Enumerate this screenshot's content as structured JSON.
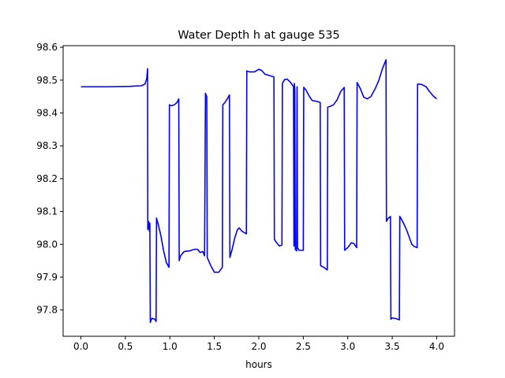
{
  "chart_data": {
    "type": "line",
    "title": "Water Depth h at gauge 535",
    "xlabel": "hours",
    "ylabel": "",
    "xlim": [
      -0.2,
      4.2
    ],
    "ylim": [
      97.72,
      98.605
    ],
    "xticks": [
      0.0,
      0.5,
      1.0,
      1.5,
      2.0,
      2.5,
      3.0,
      3.5,
      4.0
    ],
    "xtick_labels": [
      "0.0",
      "0.5",
      "1.0",
      "1.5",
      "2.0",
      "2.5",
      "3.0",
      "3.5",
      "4.0"
    ],
    "yticks": [
      97.8,
      97.9,
      98.0,
      98.1,
      98.2,
      98.3,
      98.4,
      98.5,
      98.6
    ],
    "ytick_labels": [
      "97.8",
      "97.9",
      "98.0",
      "98.1",
      "98.2",
      "98.3",
      "98.4",
      "98.5",
      "98.6"
    ],
    "grid": false,
    "legend": "none",
    "series": [
      {
        "color": "#0000ff",
        "points": [
          [
            0.0,
            98.48
          ],
          [
            0.3,
            98.48
          ],
          [
            0.55,
            98.481
          ],
          [
            0.68,
            98.483
          ],
          [
            0.72,
            98.488
          ],
          [
            0.74,
            98.505
          ],
          [
            0.75,
            98.535
          ],
          [
            0.752,
            98.045
          ],
          [
            0.76,
            98.07
          ],
          [
            0.77,
            98.04
          ],
          [
            0.775,
            98.065
          ],
          [
            0.78,
            97.762
          ],
          [
            0.79,
            97.77
          ],
          [
            0.8,
            97.775
          ],
          [
            0.83,
            97.772
          ],
          [
            0.845,
            97.765
          ],
          [
            0.85,
            98.08
          ],
          [
            0.87,
            98.06
          ],
          [
            0.9,
            98.025
          ],
          [
            0.93,
            97.98
          ],
          [
            0.96,
            97.945
          ],
          [
            0.99,
            97.93
          ],
          [
            0.995,
            98.425
          ],
          [
            1.02,
            98.422
          ],
          [
            1.05,
            98.425
          ],
          [
            1.08,
            98.432
          ],
          [
            1.1,
            98.443
          ],
          [
            1.105,
            97.95
          ],
          [
            1.12,
            97.965
          ],
          [
            1.16,
            97.978
          ],
          [
            1.22,
            97.98
          ],
          [
            1.28,
            97.985
          ],
          [
            1.31,
            97.985
          ],
          [
            1.34,
            97.975
          ],
          [
            1.37,
            97.978
          ],
          [
            1.39,
            97.965
          ],
          [
            1.4,
            98.46
          ],
          [
            1.415,
            98.45
          ],
          [
            1.42,
            97.96
          ],
          [
            1.46,
            97.935
          ],
          [
            1.5,
            97.915
          ],
          [
            1.55,
            97.915
          ],
          [
            1.59,
            97.93
          ],
          [
            1.595,
            98.425
          ],
          [
            1.62,
            98.432
          ],
          [
            1.65,
            98.445
          ],
          [
            1.67,
            98.455
          ],
          [
            1.675,
            97.96
          ],
          [
            1.7,
            97.985
          ],
          [
            1.73,
            98.02
          ],
          [
            1.76,
            98.045
          ],
          [
            1.78,
            98.05
          ],
          [
            1.81,
            98.04
          ],
          [
            1.86,
            98.032
          ],
          [
            1.865,
            98.528
          ],
          [
            1.9,
            98.525
          ],
          [
            1.95,
            98.525
          ],
          [
            2.0,
            98.533
          ],
          [
            2.03,
            98.53
          ],
          [
            2.07,
            98.518
          ],
          [
            2.17,
            98.51
          ],
          [
            2.175,
            98.015
          ],
          [
            2.2,
            98.005
          ],
          [
            2.23,
            97.995
          ],
          [
            2.26,
            97.998
          ],
          [
            2.265,
            98.49
          ],
          [
            2.29,
            98.502
          ],
          [
            2.32,
            98.503
          ],
          [
            2.36,
            98.492
          ],
          [
            2.39,
            98.48
          ],
          [
            2.395,
            97.995
          ],
          [
            2.4,
            98.49
          ],
          [
            2.405,
            98.47
          ],
          [
            2.41,
            97.985
          ],
          [
            2.425,
            97.98
          ],
          [
            2.43,
            98.48
          ],
          [
            2.435,
            97.99
          ],
          [
            2.45,
            97.982
          ],
          [
            2.5,
            97.982
          ],
          [
            2.505,
            98.478
          ],
          [
            2.53,
            98.47
          ],
          [
            2.57,
            98.45
          ],
          [
            2.6,
            98.438
          ],
          [
            2.66,
            98.435
          ],
          [
            2.69,
            98.432
          ],
          [
            2.695,
            97.935
          ],
          [
            2.73,
            97.93
          ],
          [
            2.77,
            97.922
          ],
          [
            2.775,
            98.418
          ],
          [
            2.8,
            98.42
          ],
          [
            2.84,
            98.425
          ],
          [
            2.88,
            98.44
          ],
          [
            2.92,
            98.465
          ],
          [
            2.96,
            98.478
          ],
          [
            2.965,
            97.982
          ],
          [
            3.0,
            97.99
          ],
          [
            3.04,
            98.005
          ],
          [
            3.07,
            98.002
          ],
          [
            3.1,
            97.99
          ],
          [
            3.105,
            98.493
          ],
          [
            3.14,
            98.475
          ],
          [
            3.18,
            98.448
          ],
          [
            3.22,
            98.443
          ],
          [
            3.26,
            98.45
          ],
          [
            3.31,
            98.475
          ],
          [
            3.35,
            98.5
          ],
          [
            3.39,
            98.535
          ],
          [
            3.43,
            98.562
          ],
          [
            3.435,
            98.07
          ],
          [
            3.45,
            98.078
          ],
          [
            3.48,
            98.085
          ],
          [
            3.485,
            97.772
          ],
          [
            3.5,
            97.776
          ],
          [
            3.54,
            97.774
          ],
          [
            3.58,
            97.77
          ],
          [
            3.585,
            98.085
          ],
          [
            3.62,
            98.068
          ],
          [
            3.66,
            98.045
          ],
          [
            3.72,
            98.0
          ],
          [
            3.75,
            97.993
          ],
          [
            3.78,
            97.99
          ],
          [
            3.785,
            98.488
          ],
          [
            3.83,
            98.487
          ],
          [
            3.88,
            98.48
          ],
          [
            3.92,
            98.465
          ],
          [
            3.96,
            98.452
          ],
          [
            4.0,
            98.443
          ]
        ]
      }
    ]
  }
}
